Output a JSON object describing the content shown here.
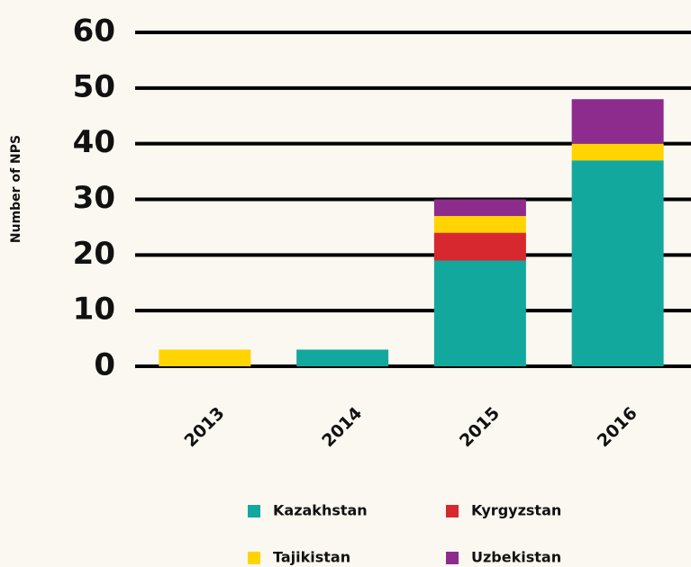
{
  "chart_data": {
    "type": "stacked_bar",
    "y_label": "Number of NPS",
    "categories": [
      "2013",
      "2014",
      "2015",
      "2016"
    ],
    "series": [
      {
        "name": "Kazakhstan",
        "color": "#13a89e",
        "values": [
          0,
          3,
          19,
          37
        ]
      },
      {
        "name": "Kyrgyzstan",
        "color": "#d7282f",
        "values": [
          0,
          0,
          5,
          0
        ]
      },
      {
        "name": "Tajikistan",
        "color": "#ffd400",
        "values": [
          3,
          0,
          3,
          3
        ]
      },
      {
        "name": "Uzbekistan",
        "color": "#8e2c8e",
        "values": [
          0,
          0,
          3,
          8
        ]
      }
    ],
    "ylim": [
      0,
      60
    ],
    "yticks": [
      0,
      10,
      20,
      30,
      40,
      50,
      60
    ],
    "grid": true
  }
}
